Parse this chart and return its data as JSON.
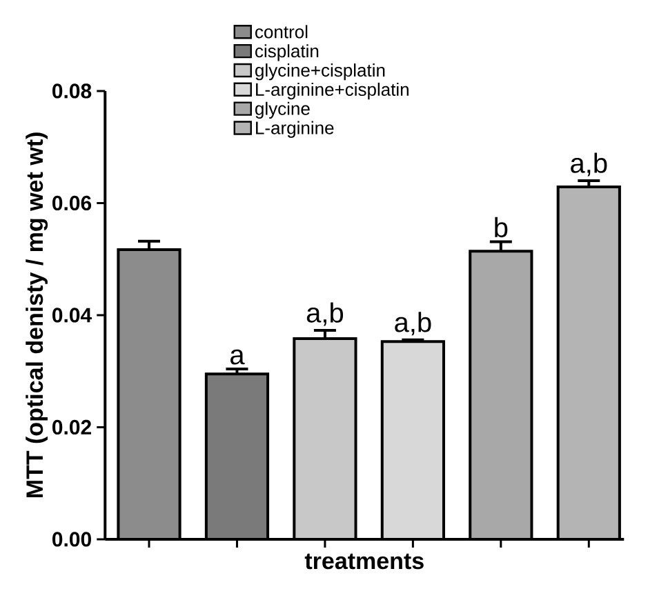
{
  "chart_data": {
    "type": "bar",
    "ylabel": "MTT (optical denisty / mg wet wt)",
    "xlabel": "treatments",
    "categories": [
      null,
      null,
      null,
      null,
      null,
      null
    ],
    "series": [
      {
        "name": "control",
        "color": "#8c8c8c",
        "values": [
          0.0517,
          null,
          null,
          null,
          null,
          null
        ],
        "errors": [
          0.0015,
          null,
          null,
          null,
          null,
          null
        ]
      },
      {
        "name": "cisplatin",
        "color": "#7a7a7a",
        "values": [
          null,
          0.0295,
          null,
          null,
          null,
          null
        ],
        "errors": [
          null,
          0.0009,
          null,
          null,
          null,
          null
        ]
      },
      {
        "name": "glycine+cisplatin",
        "color": "#c8c8c8",
        "values": [
          null,
          null,
          0.0358,
          null,
          null,
          null
        ],
        "errors": [
          null,
          null,
          0.0015,
          null,
          null,
          null
        ]
      },
      {
        "name": "L-arginine+cisplatin",
        "color": "#d8d8d8",
        "values": [
          null,
          null,
          null,
          0.0353,
          null,
          null
        ],
        "errors": [
          null,
          null,
          null,
          0.0003,
          null,
          null
        ]
      },
      {
        "name": "glycine",
        "color": "#a8a8a8",
        "values": [
          null,
          null,
          null,
          null,
          0.0514,
          null
        ],
        "errors": [
          null,
          null,
          null,
          null,
          0.0017,
          null
        ]
      },
      {
        "name": "L-arginine",
        "color": "#b4b4b4",
        "values": [
          null,
          null,
          null,
          null,
          null,
          0.0629
        ],
        "errors": [
          null,
          null,
          null,
          null,
          null,
          0.0011
        ]
      }
    ],
    "annotations": [
      {
        "text": "a",
        "y": 0.0304
      },
      {
        "text": "a,b",
        "y": 0.0373
      },
      {
        "text": "a,b",
        "y": 0.0356
      },
      {
        "text": "b",
        "y": 0.0531
      },
      {
        "text": "a,b",
        "y": 0.064
      }
    ],
    "ylim": [
      0,
      0.08
    ],
    "yticks": [
      {
        "value": 0,
        "label": "0.00"
      },
      {
        "value": 0.02,
        "label": "0.02"
      },
      {
        "value": 0.04,
        "label": "0.04"
      },
      {
        "value": 0.06,
        "label": "0.06"
      },
      {
        "value": 0.08,
        "label": "0.08"
      }
    ],
    "tick_labels": "y",
    "legend": "top",
    "grid": false
  }
}
